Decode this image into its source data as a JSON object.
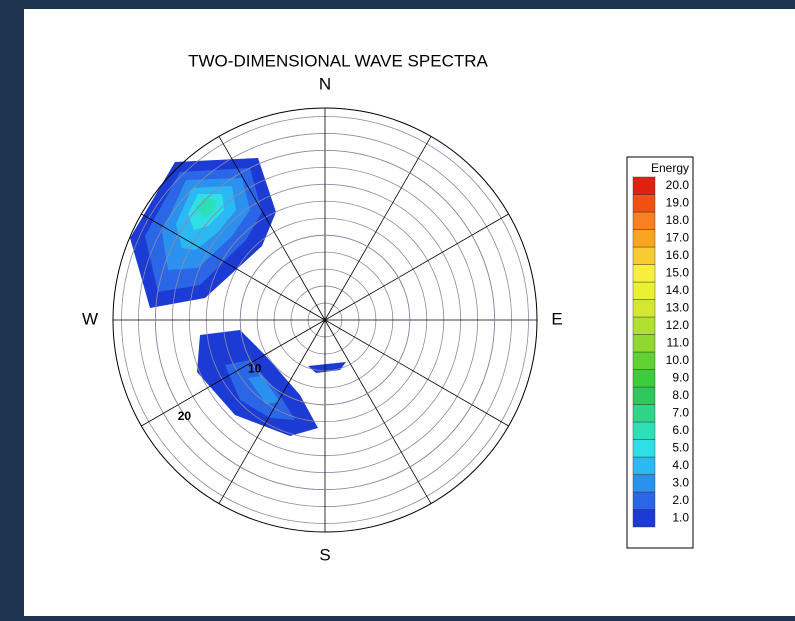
{
  "chart_data": {
    "type": "polar-contour",
    "title": "TWO-DIMENSIONAL WAVE SPECTRA",
    "directions": [
      "N",
      "E",
      "S",
      "W"
    ],
    "rlim": [
      0,
      25
    ],
    "rticks": [
      10,
      20
    ],
    "legend_title": "Energy",
    "levels": [
      {
        "value": 1,
        "label": "1.0",
        "color": "#1c3bd4"
      },
      {
        "value": 2,
        "label": "2.0",
        "color": "#2a66e6"
      },
      {
        "value": 3,
        "label": "3.0",
        "color": "#2a92ee"
      },
      {
        "value": 4,
        "label": "4.0",
        "color": "#2cb8f2"
      },
      {
        "value": 5,
        "label": "5.0",
        "color": "#2ee0e6"
      },
      {
        "value": 6,
        "label": "6.0",
        "color": "#2ee0b8"
      },
      {
        "value": 7,
        "label": "7.0",
        "color": "#30d488"
      },
      {
        "value": 8,
        "label": "8.0",
        "color": "#30c85a"
      },
      {
        "value": 9,
        "label": "9.0",
        "color": "#3ccc3c"
      },
      {
        "value": 10,
        "label": "10.0",
        "color": "#62d232"
      },
      {
        "value": 11,
        "label": "11.0",
        "color": "#8ed830"
      },
      {
        "value": 12,
        "label": "12.0",
        "color": "#b2e030"
      },
      {
        "value": 13,
        "label": "13.0",
        "color": "#d2e830"
      },
      {
        "value": 14,
        "label": "14.0",
        "color": "#eaf032"
      },
      {
        "value": 15,
        "label": "15.0",
        "color": "#f8ee40"
      },
      {
        "value": 16,
        "label": "16.0",
        "color": "#f8cc30"
      },
      {
        "value": 17,
        "label": "17.0",
        "color": "#f8a420"
      },
      {
        "value": 18,
        "label": "18.0",
        "color": "#f88020"
      },
      {
        "value": 19,
        "label": "19.0",
        "color": "#f05012"
      },
      {
        "value": 20,
        "label": "20.0",
        "color": "#e02010"
      }
    ]
  }
}
